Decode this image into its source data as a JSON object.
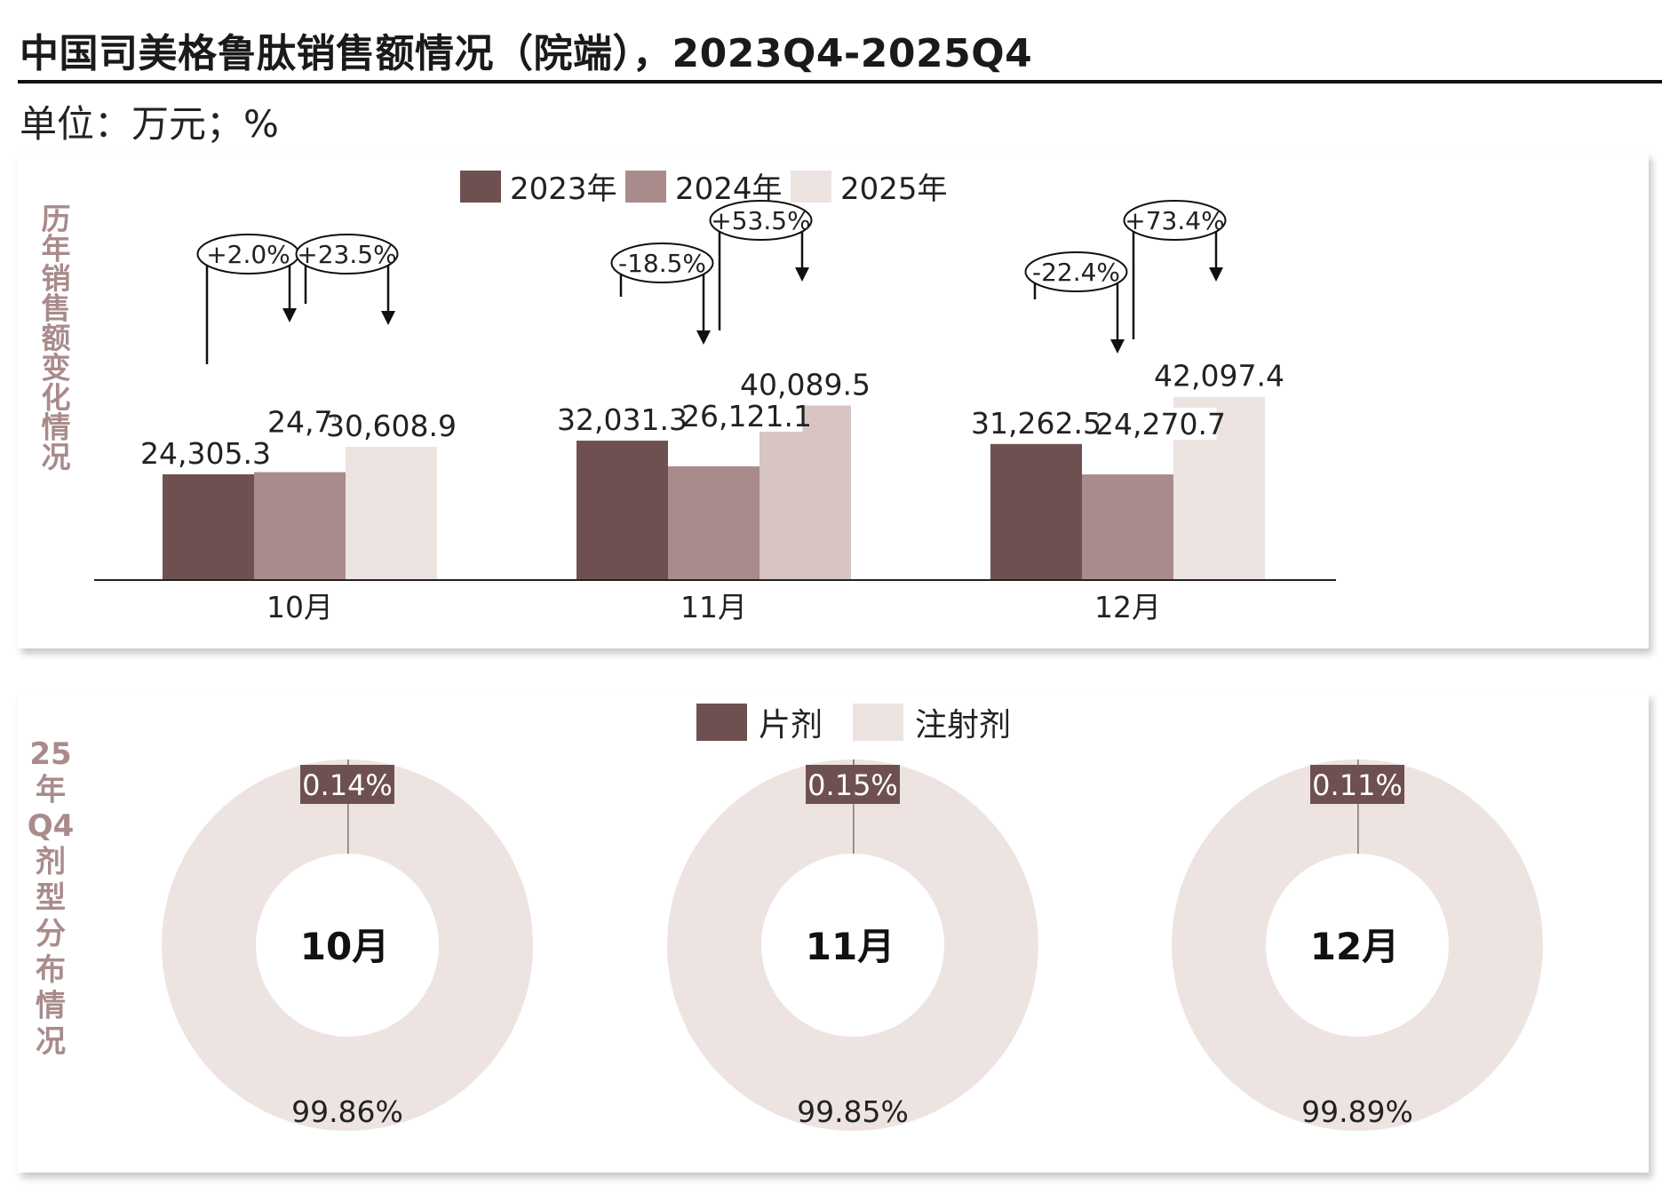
{
  "title": "中国司美格鲁肽销售额情况（院端），2023Q4-2025Q4",
  "unit": "单位：万元；%",
  "colors": {
    "y2023": "#6f5051",
    "y2024": "#a98b8b",
    "y2025_oct": "#ede4e2",
    "y2025_nov": "#d7c4c3",
    "y2025_dec": "#ede4e2",
    "tablet": "#6f5051",
    "injection": "#ede4e2",
    "side_label": "#a98b8b"
  },
  "chart_data": [
    {
      "type": "bar",
      "side_label": "历年销售额变化情况",
      "categories": [
        "10月",
        "11月",
        "12月"
      ],
      "series": [
        {
          "name": "2023年",
          "values": [
            24305.3,
            32031.3,
            31262.5
          ],
          "labels": [
            "24,305.3",
            "32,031.3",
            "31,262.5"
          ]
        },
        {
          "name": "2024年",
          "values": [
            24793.9,
            26121.1,
            24270.7
          ],
          "labels": [
            "24,793.9",
            "26,121.1",
            "24,270.7"
          ]
        },
        {
          "name": "2025年",
          "values": [
            30608.9,
            40089.5,
            42097.4
          ],
          "labels": [
            "30,608.9",
            "40,089.5",
            "42,097.4"
          ]
        }
      ],
      "growth": [
        {
          "category": "10月",
          "yoy_2024": "+2.0%",
          "yoy_2025": "+23.5%"
        },
        {
          "category": "11月",
          "yoy_2024": "-18.5%",
          "yoy_2025": "+53.5%"
        },
        {
          "category": "12月",
          "yoy_2024": "-22.4%",
          "yoy_2025": "+73.4%"
        }
      ],
      "legend_position": "top-center",
      "grid": false
    },
    {
      "type": "pie",
      "side_label": "25年Q4剂型分布情况",
      "legend": [
        "片剂",
        "注射剂"
      ],
      "legend_position": "top-center",
      "charts": [
        {
          "center_label": "10月",
          "values": [
            0.14,
            99.86
          ],
          "labels": [
            "0.14%",
            "99.86%"
          ]
        },
        {
          "center_label": "11月",
          "values": [
            0.15,
            99.85
          ],
          "labels": [
            "0.15%",
            "99.85%"
          ]
        },
        {
          "center_label": "12月",
          "values": [
            0.11,
            99.89
          ],
          "labels": [
            "0.11%",
            "99.89%"
          ]
        }
      ]
    }
  ]
}
